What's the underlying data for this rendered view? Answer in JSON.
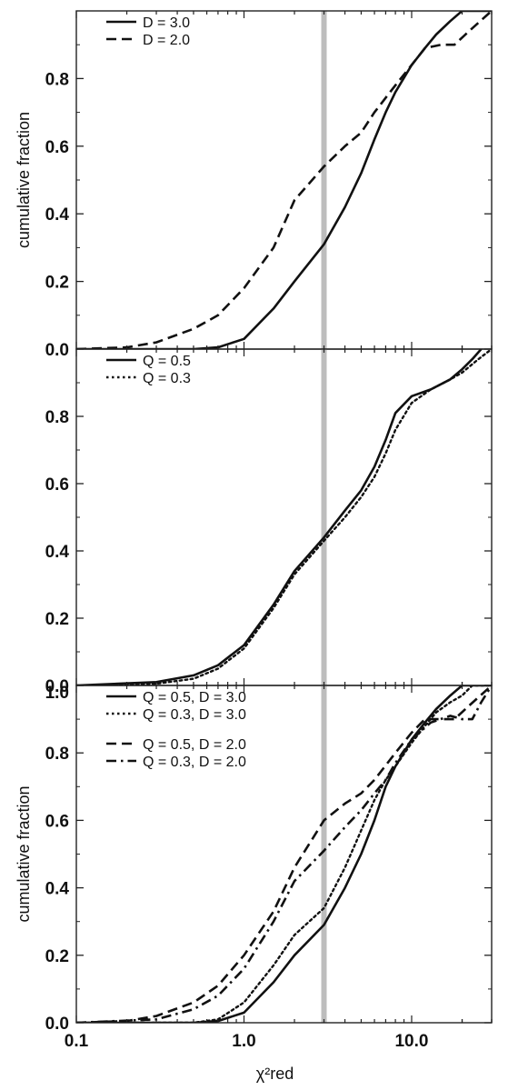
{
  "chart_data": [
    {
      "type": "line",
      "panel": "top",
      "ylabel": "cumulative fraction",
      "xscale": "log",
      "xlim": [
        0.1,
        30
      ],
      "ylim": [
        0,
        1
      ],
      "yticks": [
        "0.0",
        "0.2",
        "0.4",
        "0.6",
        "0.8"
      ],
      "legend": "top-left",
      "vertical_marker_x": 3.0,
      "series": [
        {
          "name": "D = 3.0",
          "style": "solid",
          "x": [
            0.1,
            0.5,
            0.7,
            1.0,
            1.5,
            2.0,
            3.0,
            4.0,
            5.0,
            6.0,
            7.0,
            8.0,
            10.0,
            12.0,
            14.0,
            17.0,
            20.0,
            30.0
          ],
          "y": [
            0.0,
            0.0,
            0.005,
            0.03,
            0.12,
            0.2,
            0.31,
            0.42,
            0.52,
            0.62,
            0.7,
            0.76,
            0.84,
            0.89,
            0.93,
            0.97,
            1.0,
            1.0
          ]
        },
        {
          "name": "D = 2.0",
          "style": "dashed",
          "x": [
            0.1,
            0.2,
            0.3,
            0.5,
            0.7,
            1.0,
            1.5,
            2.0,
            3.0,
            4.0,
            5.0,
            6.0,
            8.0,
            10.0,
            12.0,
            15.0,
            18.0,
            22.0,
            30.0
          ],
          "y": [
            0.0,
            0.005,
            0.02,
            0.06,
            0.1,
            0.18,
            0.3,
            0.44,
            0.54,
            0.6,
            0.64,
            0.7,
            0.78,
            0.84,
            0.89,
            0.9,
            0.9,
            0.94,
            1.0
          ]
        }
      ]
    },
    {
      "type": "line",
      "panel": "middle",
      "ylabel": "",
      "xscale": "log",
      "xlim": [
        0.1,
        30
      ],
      "ylim": [
        0,
        1
      ],
      "yticks": [
        "0.0",
        "0.2",
        "0.4",
        "0.6",
        "0.8"
      ],
      "legend": "top-left",
      "vertical_marker_x": 3.0,
      "series": [
        {
          "name": "Q = 0.5",
          "style": "solid",
          "x": [
            0.1,
            0.3,
            0.5,
            0.7,
            1.0,
            1.5,
            2.0,
            3.0,
            4.0,
            5.0,
            6.0,
            7.0,
            8.0,
            10.0,
            13.0,
            17.0,
            20.0,
            23.0,
            26.0
          ],
          "y": [
            0.0,
            0.01,
            0.03,
            0.06,
            0.12,
            0.24,
            0.34,
            0.44,
            0.52,
            0.58,
            0.65,
            0.73,
            0.81,
            0.86,
            0.88,
            0.91,
            0.94,
            0.97,
            1.0
          ]
        },
        {
          "name": "Q = 0.3",
          "style": "dotted",
          "x": [
            0.1,
            0.3,
            0.5,
            0.7,
            1.0,
            1.5,
            2.0,
            3.0,
            4.0,
            5.0,
            6.0,
            7.0,
            8.0,
            10.0,
            13.0,
            17.0,
            20.0,
            25.0,
            30.0
          ],
          "y": [
            0.0,
            0.005,
            0.02,
            0.05,
            0.11,
            0.23,
            0.33,
            0.43,
            0.5,
            0.56,
            0.62,
            0.69,
            0.76,
            0.84,
            0.88,
            0.91,
            0.93,
            0.97,
            1.0
          ]
        }
      ]
    },
    {
      "type": "line",
      "panel": "bottom",
      "ylabel": "cumulative fraction",
      "xlabel": "χ²red",
      "xscale": "log",
      "xlim": [
        0.1,
        30
      ],
      "ylim": [
        0,
        1
      ],
      "xticks": [
        "0.1",
        "1.0",
        "10.0"
      ],
      "yticks": [
        "0.0",
        "0.2",
        "0.4",
        "0.6",
        "0.8",
        "1.0"
      ],
      "legend": "top-left",
      "vertical_marker_x": 3.0,
      "series": [
        {
          "name": "Q = 0.5, D = 3.0",
          "style": "solid",
          "x": [
            0.1,
            0.5,
            0.7,
            1.0,
            1.5,
            2.0,
            3.0,
            4.0,
            5.0,
            6.0,
            7.0,
            8.0,
            10.0,
            12.0,
            14.0,
            17.0,
            20.0,
            30.0
          ],
          "y": [
            0.0,
            0.0,
            0.005,
            0.03,
            0.12,
            0.2,
            0.29,
            0.4,
            0.5,
            0.6,
            0.7,
            0.76,
            0.84,
            0.89,
            0.93,
            0.97,
            1.0,
            1.0
          ]
        },
        {
          "name": "Q = 0.3, D = 3.0",
          "style": "dotted",
          "x": [
            0.1,
            0.5,
            0.7,
            1.0,
            1.5,
            2.0,
            3.0,
            4.0,
            5.0,
            6.0,
            7.0,
            8.0,
            10.0,
            12.0,
            14.0,
            17.0,
            20.0,
            23.0,
            30.0
          ],
          "y": [
            0.0,
            0.0,
            0.01,
            0.06,
            0.17,
            0.26,
            0.34,
            0.46,
            0.57,
            0.66,
            0.72,
            0.76,
            0.83,
            0.88,
            0.92,
            0.95,
            0.97,
            1.0,
            1.0
          ]
        },
        {
          "name": "Q = 0.5, D = 2.0",
          "style": "dashed",
          "x": [
            0.1,
            0.2,
            0.3,
            0.5,
            0.7,
            1.0,
            1.5,
            2.0,
            3.0,
            4.0,
            5.0,
            6.0,
            8.0,
            10.0,
            12.0,
            15.0,
            18.0,
            22.0,
            30.0
          ],
          "y": [
            0.0,
            0.005,
            0.02,
            0.06,
            0.11,
            0.2,
            0.33,
            0.46,
            0.6,
            0.65,
            0.68,
            0.72,
            0.8,
            0.86,
            0.9,
            0.9,
            0.9,
            0.94,
            1.0
          ]
        },
        {
          "name": "Q = 0.3, D = 2.0",
          "style": "dashdot",
          "x": [
            0.1,
            0.3,
            0.5,
            0.7,
            1.0,
            1.5,
            2.0,
            3.0,
            4.0,
            5.0,
            6.0,
            7.0,
            8.0,
            10.0,
            13.0,
            17.0,
            20.0,
            23.0,
            26.0,
            30.0
          ],
          "y": [
            0.0,
            0.01,
            0.04,
            0.08,
            0.16,
            0.3,
            0.42,
            0.51,
            0.58,
            0.63,
            0.68,
            0.72,
            0.77,
            0.84,
            0.89,
            0.91,
            0.9,
            0.9,
            0.95,
            1.0
          ]
        }
      ]
    }
  ],
  "colors": {
    "line": "#111111",
    "marker": "#bdbdbd",
    "frame": "#222222"
  }
}
